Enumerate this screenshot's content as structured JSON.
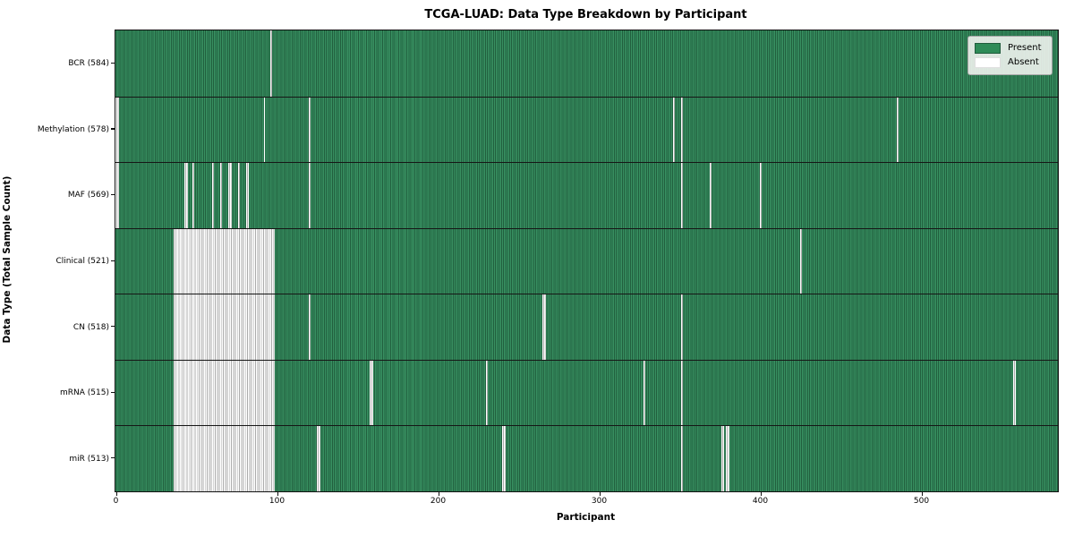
{
  "title": "TCGA-LUAD: Data Type Breakdown by Participant",
  "axes": {
    "x_label": "Participant",
    "y_label": "Data Type (Total Sample Count)"
  },
  "legend": {
    "items": [
      {
        "label": "Present",
        "color": "#2e8b57"
      },
      {
        "label": "Absent",
        "color": "#ffffff"
      }
    ],
    "position": "upper right"
  },
  "colors": {
    "present_fill": "#2e8b57",
    "present_edge": "#215f3e",
    "absent_fill": "#ffffff",
    "absent_edge": "#ababab",
    "row_divider": "#161616",
    "plot_border": "#111111",
    "background": "#ffffff"
  },
  "chart_data": {
    "type": "heatmap",
    "title": "TCGA-LUAD: Data Type Breakdown by Participant",
    "xlabel": "Participant",
    "ylabel": "Data Type (Total Sample Count)",
    "x_range": [
      0,
      585
    ],
    "x_ticks": [
      0,
      100,
      200,
      300,
      400,
      500
    ],
    "grid": false,
    "legend_entries": [
      "Present",
      "Absent"
    ],
    "legend_position": "upper right",
    "cell_semantics": "green = sample present for participant, white = absent",
    "rows": [
      {
        "label": "BCR (584)",
        "data_type": "BCR",
        "total_sample_count": 584,
        "absent_runs": [
          [
            96,
            96
          ]
        ]
      },
      {
        "label": "Methylation (578)",
        "data_type": "Methylation",
        "total_sample_count": 578,
        "absent_runs": [
          [
            0,
            1
          ],
          [
            92,
            92
          ],
          [
            120,
            120
          ],
          [
            346,
            346
          ],
          [
            351,
            351
          ],
          [
            485,
            485
          ]
        ]
      },
      {
        "label": "MAF (569)",
        "data_type": "MAF",
        "total_sample_count": 569,
        "absent_runs": [
          [
            0,
            1
          ],
          [
            43,
            44
          ],
          [
            48,
            48
          ],
          [
            60,
            60
          ],
          [
            65,
            65
          ],
          [
            70,
            71
          ],
          [
            76,
            76
          ],
          [
            81,
            82
          ],
          [
            120,
            120
          ],
          [
            351,
            351
          ],
          [
            369,
            369
          ],
          [
            400,
            400
          ]
        ]
      },
      {
        "label": "Clinical (521)",
        "data_type": "Clinical",
        "total_sample_count": 521,
        "absent_runs": [
          [
            36,
            98
          ],
          [
            425,
            425
          ]
        ]
      },
      {
        "label": "CN (518)",
        "data_type": "CN",
        "total_sample_count": 518,
        "absent_runs": [
          [
            36,
            98
          ],
          [
            120,
            120
          ],
          [
            265,
            266
          ],
          [
            351,
            351
          ]
        ]
      },
      {
        "label": "mRNA (515)",
        "data_type": "mRNA",
        "total_sample_count": 515,
        "absent_runs": [
          [
            36,
            98
          ],
          [
            158,
            159
          ],
          [
            230,
            230
          ],
          [
            328,
            328
          ],
          [
            351,
            351
          ],
          [
            557,
            558
          ]
        ]
      },
      {
        "label": "miR (513)",
        "data_type": "miR",
        "total_sample_count": 513,
        "absent_runs": [
          [
            36,
            98
          ],
          [
            125,
            126
          ],
          [
            240,
            241
          ],
          [
            351,
            351
          ],
          [
            376,
            377
          ],
          [
            379,
            380
          ]
        ]
      }
    ]
  }
}
